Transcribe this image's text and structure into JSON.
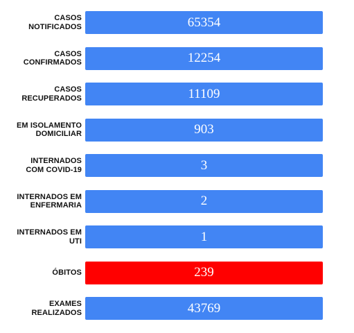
{
  "colors": {
    "primary_box": "#4285f4",
    "danger_box": "#ff0000",
    "value_text": "#ffffff",
    "label_text": "#111111"
  },
  "stats": [
    {
      "label_line1": "CASOS",
      "label_line2": "NOTIFICADOS",
      "value": "65354"
    },
    {
      "label_line1": "CASOS",
      "label_line2": "CONFIRMADOS",
      "value": "12254"
    },
    {
      "label_line1": "CASOS",
      "label_line2": "RECUPERADOS",
      "value": "11109"
    },
    {
      "label_line1": "EM ISOLAMENTO",
      "label_line2": "DOMICILIAR",
      "value": "903"
    },
    {
      "label_line1": "INTERNADOS",
      "label_line2": "COM COVID-19",
      "value": "3"
    },
    {
      "label_line1": "INTERNADOS EM",
      "label_line2": "ENFERMARIA",
      "value": "2"
    },
    {
      "label_line1": "INTERNADOS EM",
      "label_line2": "UTI",
      "value": "1"
    },
    {
      "label_line1": "ÓBITOS",
      "label_line2": "",
      "value": "239"
    },
    {
      "label_line1": "EXAMES",
      "label_line2": "REALIZADOS",
      "value": "43769"
    }
  ]
}
